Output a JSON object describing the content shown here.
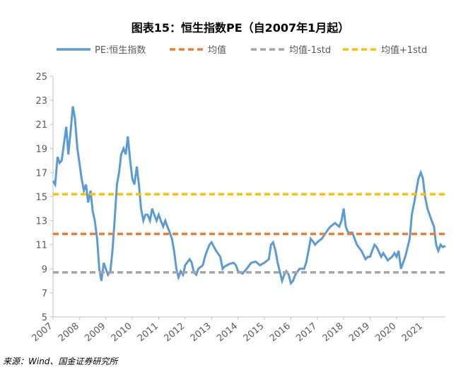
{
  "chart_data": {
    "type": "line",
    "title": "图表15：恒生指数PE（自2007年1月起）",
    "source": "来源：Wind、国金证券研究所",
    "xlim": [
      2007,
      2021.85
    ],
    "xticks": [
      2007,
      2008,
      2009,
      2010,
      2011,
      2012,
      2013,
      2014,
      2015,
      2016,
      2017,
      2018,
      2019,
      2020,
      2021
    ],
    "ylim": [
      5,
      25
    ],
    "yticks": [
      5,
      7,
      9,
      11,
      13,
      15,
      17,
      19,
      21,
      23,
      25
    ],
    "series": [
      {
        "name": "PE:恒生指数",
        "color": "#5b9bd5",
        "dash": false,
        "x": [
          2007.0,
          2007.08,
          2007.17,
          2007.25,
          2007.33,
          2007.42,
          2007.5,
          2007.58,
          2007.67,
          2007.75,
          2007.83,
          2007.92,
          2008.0,
          2008.08,
          2008.17,
          2008.25,
          2008.33,
          2008.42,
          2008.5,
          2008.58,
          2008.67,
          2008.75,
          2008.83,
          2008.92,
          2009.0,
          2009.08,
          2009.17,
          2009.25,
          2009.33,
          2009.42,
          2009.5,
          2009.58,
          2009.67,
          2009.75,
          2009.83,
          2009.92,
          2010.0,
          2010.08,
          2010.17,
          2010.25,
          2010.33,
          2010.42,
          2010.5,
          2010.58,
          2010.67,
          2010.75,
          2010.83,
          2010.92,
          2011.0,
          2011.08,
          2011.17,
          2011.25,
          2011.33,
          2011.42,
          2011.5,
          2011.58,
          2011.67,
          2011.75,
          2011.83,
          2011.92,
          2012.0,
          2012.17,
          2012.25,
          2012.33,
          2012.42,
          2012.5,
          2012.67,
          2012.75,
          2012.83,
          2012.92,
          2013.0,
          2013.17,
          2013.33,
          2013.42,
          2013.5,
          2013.67,
          2013.83,
          2013.92,
          2014.0,
          2014.17,
          2014.33,
          2014.5,
          2014.67,
          2014.83,
          2015.0,
          2015.17,
          2015.25,
          2015.33,
          2015.42,
          2015.5,
          2015.58,
          2015.67,
          2015.75,
          2015.83,
          2015.92,
          2016.0,
          2016.08,
          2016.17,
          2016.33,
          2016.5,
          2016.58,
          2016.67,
          2016.75,
          2016.83,
          2016.92,
          2017.0,
          2017.17,
          2017.33,
          2017.42,
          2017.5,
          2017.67,
          2017.83,
          2017.92,
          2018.0,
          2018.08,
          2018.17,
          2018.33,
          2018.5,
          2018.67,
          2018.83,
          2018.92,
          2019.0,
          2019.08,
          2019.17,
          2019.25,
          2019.42,
          2019.5,
          2019.67,
          2019.83,
          2019.92,
          2020.0,
          2020.08,
          2020.17,
          2020.25,
          2020.33,
          2020.5,
          2020.58,
          2020.67,
          2020.75,
          2020.83,
          2020.92,
          2021.0,
          2021.08,
          2021.17,
          2021.25,
          2021.33,
          2021.42,
          2021.5,
          2021.58,
          2021.67,
          2021.75,
          2021.85
        ],
        "values": [
          16.3,
          16.0,
          18.3,
          17.8,
          18.0,
          19.5,
          20.8,
          18.5,
          20.5,
          22.5,
          21.5,
          19.0,
          17.8,
          16.5,
          15.5,
          16.0,
          14.5,
          15.5,
          13.8,
          13.0,
          11.5,
          9.0,
          8.0,
          9.5,
          9.0,
          8.5,
          8.8,
          10.5,
          13.0,
          16.0,
          17.0,
          18.5,
          19.0,
          18.5,
          20.0,
          18.0,
          16.5,
          16.0,
          17.5,
          16.0,
          14.0,
          13.0,
          13.5,
          13.5,
          13.0,
          14.0,
          13.5,
          13.0,
          13.5,
          13.0,
          12.5,
          13.0,
          12.5,
          12.0,
          11.5,
          10.5,
          9.0,
          8.3,
          8.8,
          8.5,
          9.3,
          9.8,
          9.5,
          8.7,
          8.5,
          9.0,
          9.3,
          10.0,
          10.5,
          11.0,
          11.2,
          10.5,
          10.0,
          9.0,
          9.2,
          9.4,
          9.5,
          9.3,
          8.8,
          8.6,
          9.0,
          9.5,
          9.6,
          9.3,
          9.5,
          9.8,
          11.0,
          11.2,
          10.5,
          9.5,
          8.8,
          8.0,
          8.5,
          8.8,
          8.5,
          7.8,
          8.0,
          8.5,
          9.0,
          9.0,
          9.5,
          10.5,
          11.5,
          11.3,
          11.0,
          11.2,
          11.5,
          12.0,
          12.3,
          12.5,
          12.8,
          12.5,
          13.0,
          14.0,
          12.5,
          12.0,
          12.0,
          11.0,
          10.5,
          9.8,
          10.0,
          10.0,
          10.5,
          11.0,
          10.8,
          10.0,
          10.3,
          9.7,
          10.0,
          10.3,
          10.0,
          10.5,
          9.0,
          9.5,
          10.0,
          11.5,
          13.5,
          14.5,
          15.5,
          16.5,
          17.0,
          16.5,
          15.0,
          14.0,
          13.5,
          13.0,
          12.5,
          11.0,
          10.5,
          11.0,
          10.8,
          10.9
        ]
      },
      {
        "name": "均值",
        "color": "#ed7d31",
        "dash": true,
        "x": [
          2007,
          2021.85
        ],
        "values": [
          11.9,
          11.9
        ]
      },
      {
        "name": "均值-1std",
        "color": "#a5a5a5",
        "dash": true,
        "x": [
          2007,
          2021.85
        ],
        "values": [
          8.7,
          8.7
        ]
      },
      {
        "name": "均值+1std",
        "color": "#ffc000",
        "dash": true,
        "x": [
          2007,
          2021.85
        ],
        "values": [
          15.2,
          15.2
        ]
      }
    ]
  }
}
